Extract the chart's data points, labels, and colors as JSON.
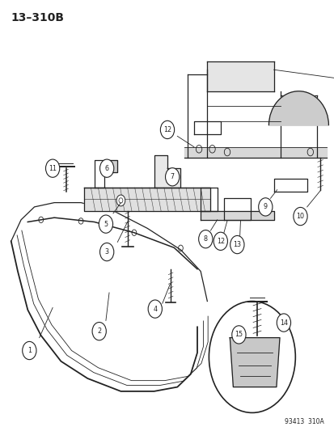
{
  "title": "13–310B",
  "watermark": "93413  310A",
  "background_color": "#ffffff",
  "line_color": "#222222",
  "fig_width": 4.14,
  "fig_height": 5.33,
  "dpi": 100
}
